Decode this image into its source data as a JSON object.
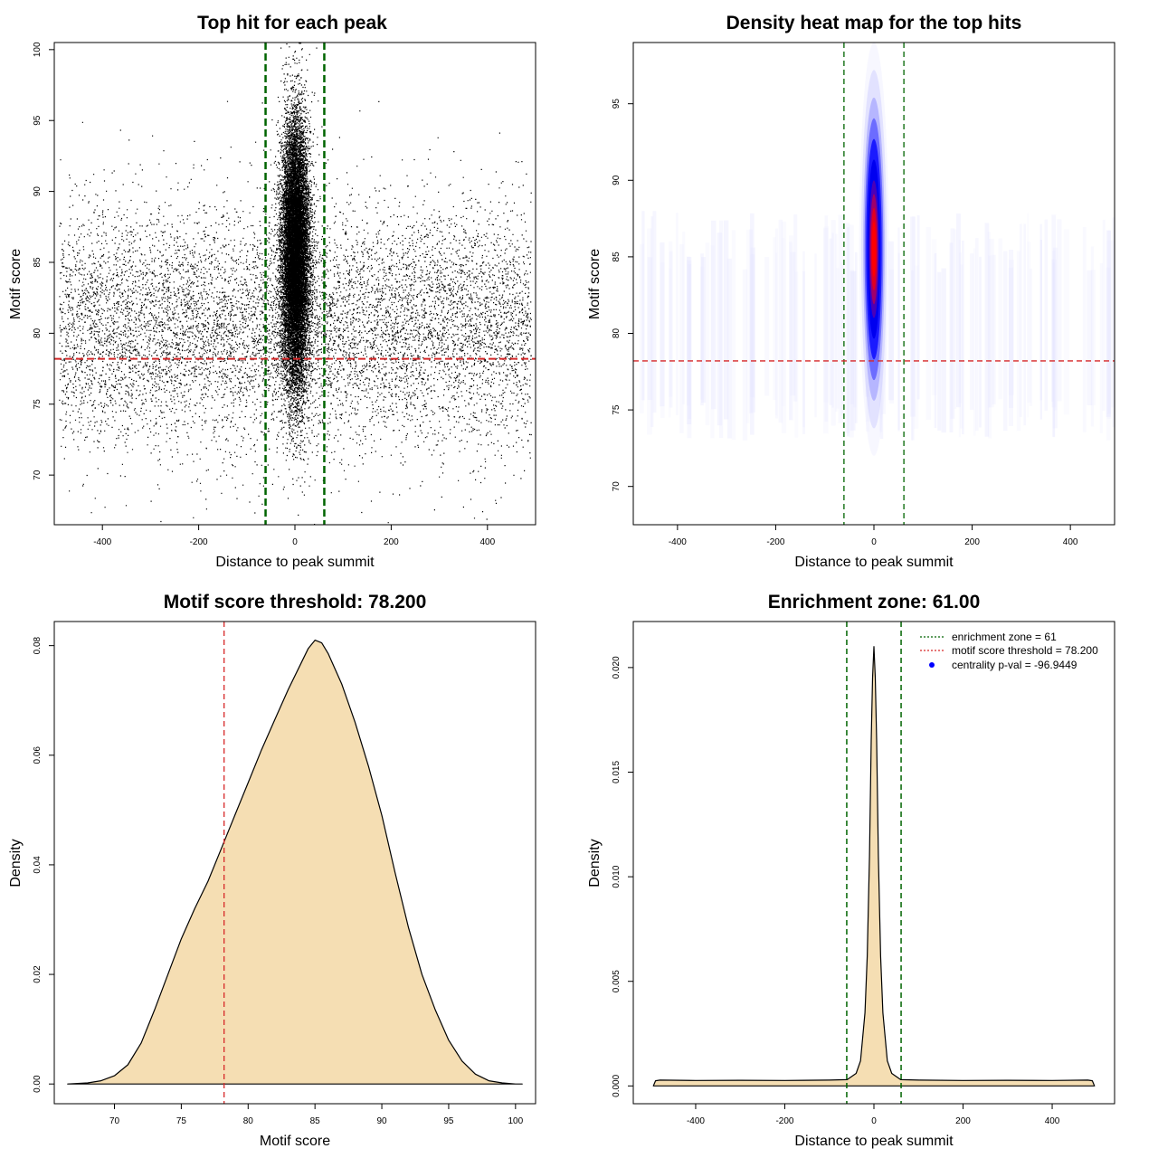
{
  "colors": {
    "threshold": "#d62728",
    "zone": "#006400",
    "fill": "#f5deb3",
    "points": "#000000",
    "heat_low": "#ffffff",
    "heat_mid": "#0000ff",
    "heat_high": "#ff0000",
    "pval_marker": "#0000ff"
  },
  "chart_data": [
    {
      "type": "scatter",
      "title": "Top hit for each peak",
      "xlabel": "Distance to peak summit",
      "ylabel": "Motif score",
      "xlim": [
        -500,
        500
      ],
      "ylim": [
        66.5,
        100.5
      ],
      "xticks": [
        "-400",
        "-200",
        "0",
        "200",
        "400"
      ],
      "yticks": [
        "70",
        "75",
        "80",
        "85",
        "90",
        "95",
        "100"
      ],
      "threshold": 78.2,
      "enrichment_zone": 61,
      "background": {
        "n": 9000,
        "x_range": [
          -490,
          490
        ],
        "y_mean": 80.5,
        "y_sd": 4.2
      },
      "central_cluster": {
        "n": 16000,
        "x_sd": 14,
        "y_mean": 85.5,
        "y_sd": 4.6
      }
    },
    {
      "type": "heatmap",
      "title": "Density heat map for the top hits",
      "xlabel": "Distance to peak summit",
      "ylabel": "Motif score",
      "xlim": [
        -490,
        490
      ],
      "ylim": [
        67.5,
        99
      ],
      "xticks": [
        "-400",
        "-200",
        "0",
        "200",
        "400"
      ],
      "yticks": [
        "70",
        "75",
        "80",
        "85",
        "90",
        "95"
      ],
      "threshold": 78.2,
      "enrichment_zone": 61,
      "peak": {
        "x": 0,
        "y": 85.5,
        "x_sd": 10,
        "y_sd": 4.5
      }
    },
    {
      "type": "area",
      "title": "Motif score threshold: 78.200",
      "xlabel": "Motif score",
      "ylabel": "Density",
      "xlim": [
        65.5,
        101.5
      ],
      "ylim": [
        -0.0036,
        0.0844
      ],
      "xticks": [
        "70",
        "75",
        "80",
        "85",
        "90",
        "95",
        "100"
      ],
      "yticks": [
        "0.00",
        "0.02",
        "0.04",
        "0.06",
        "0.08"
      ],
      "threshold": 78.2,
      "x": [
        66.5,
        68,
        69,
        70,
        71,
        72,
        73,
        74,
        75,
        76,
        77,
        78,
        79,
        80,
        81,
        82,
        83,
        84,
        84.5,
        85,
        85.5,
        86,
        87,
        88,
        89,
        90,
        91,
        92,
        93,
        94,
        95,
        96,
        97,
        98,
        99,
        100,
        100.5
      ],
      "values": [
        0.0,
        0.0002,
        0.0006,
        0.0015,
        0.0035,
        0.0075,
        0.0135,
        0.02,
        0.0265,
        0.032,
        0.037,
        0.043,
        0.049,
        0.055,
        0.061,
        0.0665,
        0.072,
        0.077,
        0.0795,
        0.081,
        0.0805,
        0.0785,
        0.073,
        0.066,
        0.058,
        0.049,
        0.0385,
        0.0285,
        0.02,
        0.0135,
        0.008,
        0.0042,
        0.0018,
        0.0006,
        0.0002,
        0.0,
        0.0
      ]
    },
    {
      "type": "area",
      "title": "Enrichment zone: 61.00",
      "xlabel": "Distance to peak summit",
      "ylabel": "Density",
      "xlim": [
        -540,
        540
      ],
      "ylim": [
        -0.00085,
        0.0222
      ],
      "xticks": [
        "-400",
        "-200",
        "0",
        "200",
        "400"
      ],
      "yticks": [
        "0.000",
        "0.005",
        "0.010",
        "0.015",
        "0.020"
      ],
      "enrichment_zone": 61,
      "threshold": 78.2,
      "x": [
        -495,
        -490,
        -480,
        -400,
        -300,
        -200,
        -100,
        -60,
        -40,
        -30,
        -20,
        -15,
        -10,
        -6,
        -3,
        0,
        3,
        6,
        10,
        15,
        20,
        30,
        40,
        60,
        100,
        200,
        300,
        400,
        480,
        490,
        495
      ],
      "values": [
        0.0,
        0.00025,
        0.00028,
        0.00026,
        0.00027,
        0.00026,
        0.00028,
        0.0003,
        0.0006,
        0.0012,
        0.0035,
        0.0062,
        0.011,
        0.0165,
        0.0195,
        0.021,
        0.0195,
        0.0165,
        0.011,
        0.0062,
        0.0035,
        0.0012,
        0.0006,
        0.0003,
        0.00028,
        0.00026,
        0.00027,
        0.00026,
        0.00028,
        0.00025,
        0.0
      ],
      "legend": {
        "zone": "enrichment zone = 61",
        "threshold": "motif score threshold = 78.200",
        "pval": "centrality p-val = -96.9449"
      }
    }
  ]
}
